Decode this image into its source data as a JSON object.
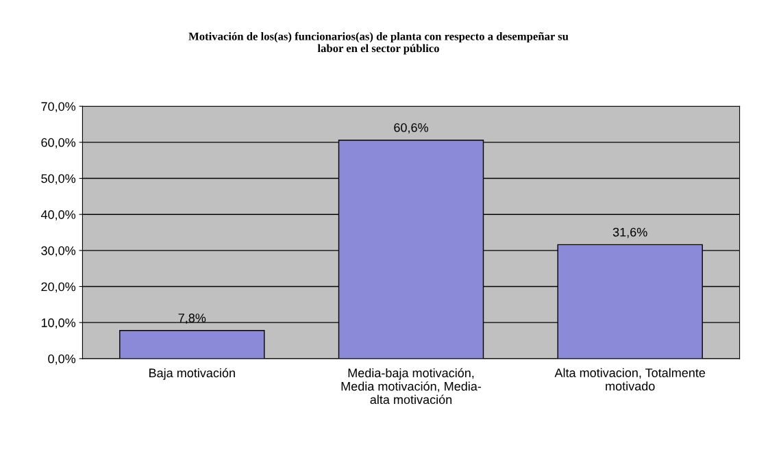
{
  "chart_data": {
    "type": "bar",
    "title": "Motivación de los(as) funcionarios(as) de planta con respecto a desempeñar su\nlabor en el sector público",
    "categories": [
      "Baja motivación",
      "Media-baja motivación,\nMedia motivación, Media-\nalta motivación",
      "Alta motivacion, Totalmente\nmotivado"
    ],
    "values": [
      7.8,
      60.6,
      31.6
    ],
    "value_labels": [
      "7,8%",
      "60,6%",
      "31,6%"
    ],
    "color": "#8a8ad8",
    "ylim": [
      0,
      70
    ],
    "yticks": [
      {
        "value": 0,
        "label": "0,0%"
      },
      {
        "value": 10,
        "label": "10,0%"
      },
      {
        "value": 20,
        "label": "20,0%"
      },
      {
        "value": 30,
        "label": "30,0%"
      },
      {
        "value": 40,
        "label": "40,0%"
      },
      {
        "value": 50,
        "label": "50,0%"
      },
      {
        "value": 60,
        "label": "60,0%"
      },
      {
        "value": 70,
        "label": "70,0%"
      }
    ],
    "grid": "y",
    "legend": false
  }
}
